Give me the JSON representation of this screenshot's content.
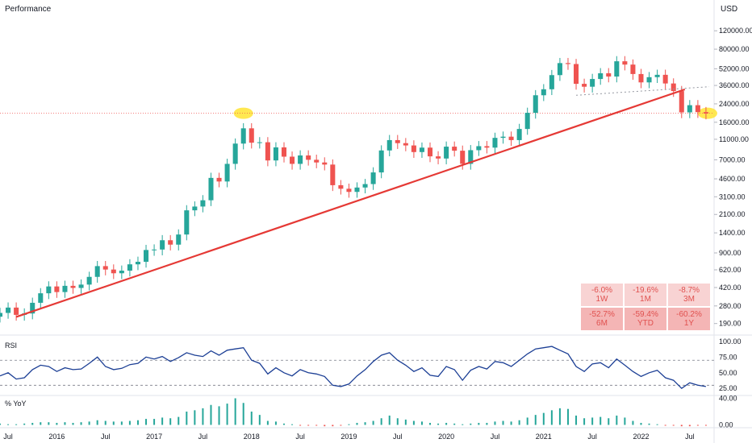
{
  "header": {
    "title": "Performance",
    "currency": "USD"
  },
  "performance": [
    {
      "value": "-6.0%",
      "period": "1W"
    },
    {
      "value": "-19.6%",
      "period": "1M"
    },
    {
      "value": "-8.7%",
      "period": "3M"
    },
    {
      "value": "-52.7%",
      "period": "6M"
    },
    {
      "value": "-59.4%",
      "period": "YTD"
    },
    {
      "value": "-60.2%",
      "period": "1Y"
    }
  ],
  "colors": {
    "up": "#26a69a",
    "down": "#ef5350",
    "rsi": "#1c3f95",
    "trendline": "#e53935",
    "highlight": "#ffe433"
  },
  "chart_data": [
    {
      "type": "candlestick",
      "yscale": "log",
      "ylim": [
        150,
        160000
      ],
      "xlim": [
        "2015-06",
        "2022-10"
      ],
      "y_ticks": [
        "120000.00",
        "80000.00",
        "52000.00",
        "36000.00",
        "24000.00",
        "16000.00",
        "11000.00",
        "7000.00",
        "4600.00",
        "3100.00",
        "2100.00",
        "1400.00",
        "900.00",
        "620.00",
        "420.00",
        "280.00",
        "190.00"
      ],
      "x_ticks": [
        "Jul",
        "2016",
        "Jul",
        "2017",
        "Jul",
        "2018",
        "Jul",
        "2019",
        "Jul",
        "2020",
        "Jul",
        "2021",
        "Jul",
        "2022",
        "Jul"
      ],
      "series": [
        {
          "x": [
            "2015-06",
            "2015-07",
            "2015-08",
            "2015-09",
            "2015-10",
            "2015-11",
            "2015-12",
            "2016-01",
            "2016-02",
            "2016-03",
            "2016-04",
            "2016-05",
            "2016-06",
            "2016-07",
            "2016-08",
            "2016-09",
            "2016-10",
            "2016-11",
            "2016-12",
            "2017-01",
            "2017-02",
            "2017-03",
            "2017-04",
            "2017-05",
            "2017-06",
            "2017-07",
            "2017-08",
            "2017-09",
            "2017-10",
            "2017-11",
            "2017-12",
            "2018-01",
            "2018-02",
            "2018-03",
            "2018-04",
            "2018-05",
            "2018-06",
            "2018-07",
            "2018-08",
            "2018-09",
            "2018-10",
            "2018-11",
            "2018-12",
            "2019-01",
            "2019-02",
            "2019-03",
            "2019-04",
            "2019-05",
            "2019-06",
            "2019-07",
            "2019-08",
            "2019-09",
            "2019-10",
            "2019-11",
            "2019-12",
            "2020-01",
            "2020-02",
            "2020-03",
            "2020-04",
            "2020-05",
            "2020-06",
            "2020-07",
            "2020-08",
            "2020-09",
            "2020-10",
            "2020-11",
            "2020-12",
            "2021-01",
            "2021-02",
            "2021-03",
            "2021-04",
            "2021-05",
            "2021-06",
            "2021-07",
            "2021-08",
            "2021-09",
            "2021-10",
            "2021-11",
            "2021-12",
            "2022-01",
            "2022-02",
            "2022-03",
            "2022-04",
            "2022-05",
            "2022-06",
            "2022-07",
            "2022-08",
            "2022-09"
          ],
          "close": [
            240,
            270,
            230,
            237,
            300,
            370,
            430,
            380,
            436,
            416,
            448,
            531,
            673,
            624,
            575,
            609,
            700,
            740,
            960,
            970,
            1190,
            1080,
            1350,
            2300,
            2500,
            2870,
            4700,
            4340,
            6400,
            10000,
            14000,
            10200,
            10300,
            6900,
            9200,
            7500,
            6400,
            7700,
            7000,
            6600,
            6300,
            4000,
            3700,
            3450,
            3800,
            4100,
            5300,
            8600,
            10800,
            10100,
            9600,
            8300,
            9150,
            7550,
            7200,
            9350,
            8550,
            6400,
            8650,
            9450,
            9150,
            11350,
            11650,
            10800,
            13800,
            19700,
            29000,
            33100,
            45200,
            58900,
            57700,
            37300,
            35000,
            41500,
            47100,
            43800,
            61300,
            57000,
            46300,
            38500,
            43200,
            45500,
            37600,
            31800,
            19900,
            23300,
            20000,
            19400
          ]
        },
        {
          "name": "RSI",
          "values": [
            45,
            50,
            40,
            42,
            55,
            62,
            60,
            52,
            58,
            55,
            56,
            65,
            75,
            60,
            55,
            57,
            63,
            65,
            75,
            72,
            76,
            68,
            74,
            82,
            78,
            76,
            85,
            78,
            86,
            88,
            90,
            70,
            65,
            48,
            58,
            50,
            45,
            55,
            50,
            48,
            44,
            30,
            28,
            32,
            45,
            55,
            68,
            78,
            82,
            70,
            62,
            52,
            58,
            46,
            44,
            60,
            55,
            38,
            54,
            60,
            56,
            68,
            66,
            60,
            70,
            80,
            88,
            90,
            92,
            86,
            80,
            60,
            52,
            64,
            66,
            58,
            72,
            62,
            52,
            44,
            50,
            54,
            42,
            38,
            25,
            34,
            30,
            28
          ]
        },
        {
          "name": "% YoY",
          "values": [
            2,
            1,
            1,
            2,
            3,
            4,
            4,
            3,
            4,
            3,
            4,
            5,
            7,
            6,
            5,
            5,
            6,
            7,
            9,
            9,
            11,
            10,
            12,
            20,
            22,
            25,
            30,
            28,
            32,
            40,
            33,
            20,
            15,
            6,
            5,
            2,
            1,
            -1,
            -1,
            -1,
            -2,
            -2,
            -1,
            1,
            3,
            4,
            6,
            10,
            14,
            10,
            8,
            6,
            5,
            3,
            2,
            3,
            2,
            1,
            2,
            3,
            3,
            5,
            6,
            5,
            7,
            11,
            15,
            18,
            22,
            25,
            24,
            14,
            10,
            11,
            12,
            10,
            14,
            11,
            6,
            3,
            2,
            1,
            -1,
            -1,
            -2,
            -2,
            -1,
            -1
          ]
        }
      ]
    }
  ]
}
